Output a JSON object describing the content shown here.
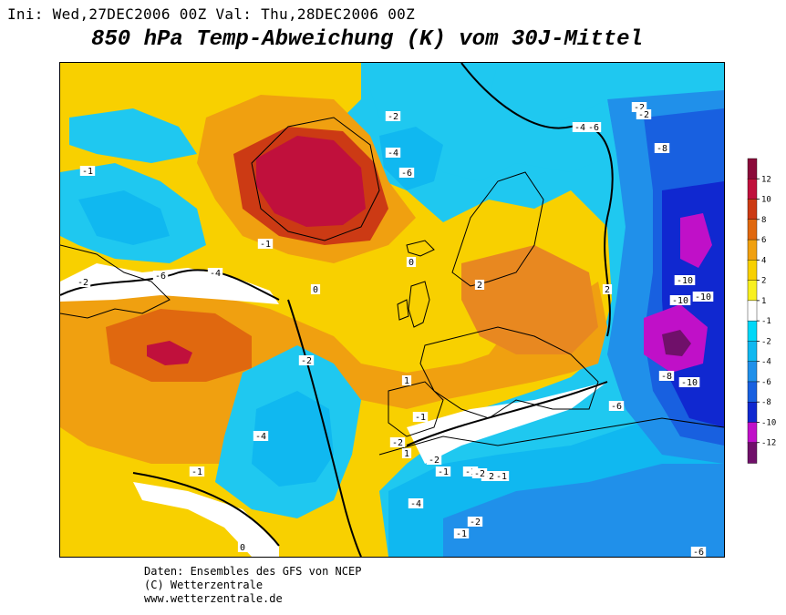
{
  "header": {
    "init_label": "Ini:",
    "init_value": "Wed,27DEC2006",
    "init_hour": "00Z",
    "valid_label": "Val:",
    "valid_value": "Thu,28DEC2006",
    "valid_hour": "00Z"
  },
  "title": "850 hPa Temp-Abweichung (K) vom 30J-Mittel",
  "colorbar": {
    "labels": [
      "12",
      "10",
      "8",
      "6",
      "4",
      "2",
      "1",
      "-1",
      "-2",
      "-4",
      "-6",
      "-8",
      "-10",
      "-12"
    ],
    "colors": [
      "#8b0a3a",
      "#c0103c",
      "#cc3a14",
      "#e0680f",
      "#f0a010",
      "#f8d000",
      "#f8f020",
      "#ffffff",
      "#00d8f8",
      "#10b8f0",
      "#2090ea",
      "#1860e0",
      "#1028d0",
      "#c010c8",
      "#70106a"
    ]
  },
  "map": {
    "contour_labels": [
      "-2",
      "-4",
      "-6",
      "-2",
      "-10",
      "-10",
      "-10",
      "-8",
      "-10",
      "-6",
      "-2",
      "-4",
      "-6",
      "-8",
      "-6",
      "-4",
      "-2",
      "-1",
      "1",
      "0",
      "2",
      "-1",
      "-4",
      "-2",
      "-2",
      "1",
      "-2",
      "-1",
      "-1",
      "-2",
      "-1",
      "-4",
      "-2",
      "-2",
      "-1",
      "-6",
      "0",
      "-1",
      "-1",
      "0",
      "2"
    ]
  },
  "footer": {
    "line1": "Daten: Ensembles des GFS von NCEP",
    "line2": "(C) Wetterzentrale",
    "line3": "www.wetterzentrale.de"
  }
}
